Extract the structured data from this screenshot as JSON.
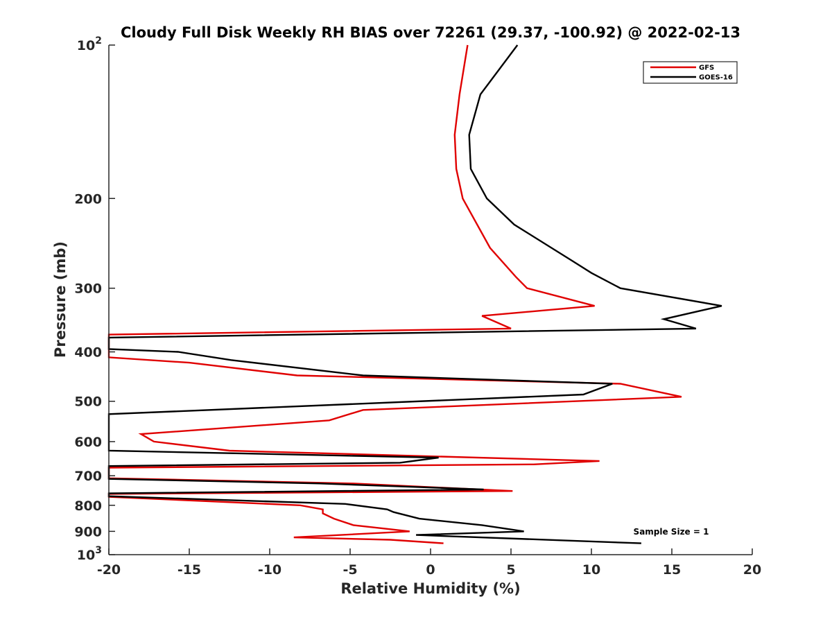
{
  "chart_data": {
    "type": "line",
    "title": "Cloudy Full Disk Weekly RH BIAS over 72261 (29.37, -100.92) @ 2022-02-13",
    "xlabel": "Relative Humidity (%)",
    "ylabel": "Pressure (mb)",
    "xlim": [
      -20,
      20
    ],
    "ylim": [
      100,
      1000
    ],
    "y_scale": "log",
    "y_reversed": true,
    "grid": false,
    "legend_position": "top-right",
    "x_ticks": [
      -20,
      -15,
      -10,
      -5,
      0,
      5,
      10,
      15,
      20
    ],
    "x_tick_labels": [
      "-20",
      "-15",
      "-10",
      "-5",
      "0",
      "5",
      "10",
      "15",
      "20"
    ],
    "y_ticks": [
      100,
      200,
      300,
      400,
      500,
      600,
      700,
      800,
      900,
      1000
    ],
    "y_tick_labels": [
      {
        "base": "10",
        "sup": "2"
      },
      {
        "base": "200",
        "sup": ""
      },
      {
        "base": "300",
        "sup": ""
      },
      {
        "base": "400",
        "sup": ""
      },
      {
        "base": "500",
        "sup": ""
      },
      {
        "base": "600",
        "sup": ""
      },
      {
        "base": "700",
        "sup": ""
      },
      {
        "base": "800",
        "sup": ""
      },
      {
        "base": "900",
        "sup": ""
      },
      {
        "base": "10",
        "sup": "3"
      }
    ],
    "annotation": "Sample Size = 1",
    "series": [
      {
        "name": "GFS",
        "color": "#e00000",
        "points": [
          [
            2.3,
            100
          ],
          [
            1.8,
            125
          ],
          [
            1.5,
            150
          ],
          [
            1.6,
            175
          ],
          [
            2.0,
            200
          ],
          [
            3.7,
            250
          ],
          [
            5.3,
            285
          ],
          [
            6.0,
            300
          ],
          [
            10.2,
            325
          ],
          [
            3.2,
            340
          ],
          [
            5.0,
            360
          ],
          [
            -20.0,
            370
          ],
          [
            -20.0,
            410
          ],
          [
            -15.0,
            420
          ],
          [
            -8.3,
            445
          ],
          [
            11.8,
            462
          ],
          [
            15.6,
            490
          ],
          [
            -4.2,
            520
          ],
          [
            -6.3,
            545
          ],
          [
            -18.0,
            580
          ],
          [
            -17.2,
            600
          ],
          [
            -12.5,
            625
          ],
          [
            10.5,
            655
          ],
          [
            6.4,
            665
          ],
          [
            -20.0,
            675
          ],
          [
            -20.0,
            708
          ],
          [
            -4.8,
            725
          ],
          [
            5.1,
            750
          ],
          [
            -20.0,
            760
          ],
          [
            -20.0,
            770
          ],
          [
            -8.1,
            800
          ],
          [
            -6.7,
            815
          ],
          [
            -6.7,
            830
          ],
          [
            -6.0,
            850
          ],
          [
            -4.8,
            875
          ],
          [
            -1.3,
            900
          ],
          [
            -8.5,
            925
          ],
          [
            -2.5,
            935
          ],
          [
            0.8,
            950
          ]
        ]
      },
      {
        "name": "GOES-16",
        "color": "#000000",
        "points": [
          [
            5.4,
            100
          ],
          [
            3.1,
            125
          ],
          [
            2.4,
            150
          ],
          [
            2.5,
            175
          ],
          [
            3.5,
            200
          ],
          [
            5.2,
            225
          ],
          [
            8.8,
            265
          ],
          [
            10.0,
            280
          ],
          [
            11.8,
            300
          ],
          [
            18.1,
            325
          ],
          [
            14.5,
            345
          ],
          [
            16.5,
            360
          ],
          [
            -20.0,
            375
          ],
          [
            -20.0,
            395
          ],
          [
            -15.7,
            400
          ],
          [
            -12.4,
            415
          ],
          [
            -4.2,
            445
          ],
          [
            11.3,
            462
          ],
          [
            9.5,
            485
          ],
          [
            -20.0,
            530
          ],
          [
            -20.0,
            625
          ],
          [
            0.5,
            645
          ],
          [
            -1.9,
            660
          ],
          [
            -20.0,
            670
          ],
          [
            -20.0,
            700
          ],
          [
            -20.0,
            710
          ],
          [
            -6.9,
            725
          ],
          [
            3.3,
            745
          ],
          [
            -20.0,
            758
          ],
          [
            -20.0,
            768
          ],
          [
            -5.3,
            795
          ],
          [
            -2.7,
            815
          ],
          [
            -2.3,
            825
          ],
          [
            -0.7,
            850
          ],
          [
            3.2,
            875
          ],
          [
            5.8,
            900
          ],
          [
            -0.9,
            915
          ],
          [
            13.1,
            950
          ]
        ]
      }
    ]
  }
}
